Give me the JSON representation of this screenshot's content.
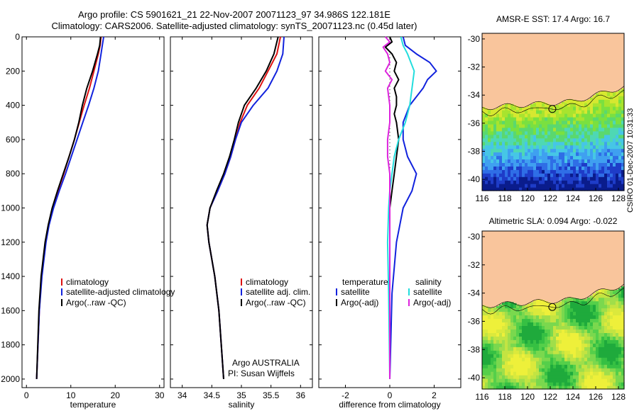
{
  "header": {
    "line1": "Argo profile: CS 5901621_21 22-Nov-2007 20071123_97 34.986S 122.181E",
    "line2": "Climatology: CARS2006. Satellite-adjusted climatology: synTS_20071123.nc (0.45d later)"
  },
  "credit": "CSIRO 01-Dec-2007 10:31:33",
  "colors": {
    "red": "#dd1111",
    "blue": "#1122dd",
    "black": "#000000",
    "cyan": "#22dddd",
    "magenta": "#dd22dd",
    "land": "#f9c59c"
  },
  "chart_data": [
    {
      "type": "line",
      "xlabel": "temperature",
      "xlim": [
        -1,
        31
      ],
      "xticks": [
        0,
        10,
        20,
        30
      ],
      "ylim": [
        2050,
        0
      ],
      "yticks": [
        0,
        200,
        400,
        600,
        800,
        1000,
        1200,
        1400,
        1600,
        1800,
        2000
      ],
      "legend": [
        "climatology",
        "satellite-adjusted climatology",
        "Argo(..raw -QC)"
      ],
      "series": [
        {
          "name": "climatology",
          "color": "red",
          "y": [
            0,
            50,
            100,
            200,
            300,
            400,
            500,
            600,
            700,
            800,
            900,
            1000,
            1100,
            1200,
            1400,
            1600,
            2000
          ],
          "x": [
            16.8,
            16.6,
            16.2,
            15.2,
            14.2,
            13.0,
            11.9,
            10.8,
            9.6,
            8.4,
            7.1,
            5.9,
            5.0,
            4.3,
            3.4,
            2.9,
            2.3
          ]
        },
        {
          "name": "satellite-adjusted climatology",
          "color": "blue",
          "y": [
            0,
            50,
            100,
            200,
            300,
            400,
            500,
            600,
            700,
            800,
            900,
            1000,
            1100,
            1200,
            1400,
            1600,
            2000
          ],
          "x": [
            17.4,
            17.1,
            16.8,
            16.2,
            15.2,
            14.0,
            12.7,
            11.4,
            10.1,
            8.8,
            7.4,
            6.1,
            5.1,
            4.4,
            3.5,
            2.9,
            2.3
          ]
        },
        {
          "name": "Argo(..raw -QC)",
          "color": "black",
          "y": [
            0,
            50,
            100,
            200,
            300,
            400,
            500,
            600,
            700,
            800,
            900,
            1000,
            1100,
            1200,
            1400,
            1600,
            2000
          ],
          "x": [
            16.7,
            16.5,
            16.0,
            14.9,
            13.6,
            12.6,
            11.8,
            10.8,
            9.6,
            8.3,
            7.0,
            5.8,
            4.9,
            4.2,
            3.3,
            2.8,
            2.3
          ]
        }
      ]
    },
    {
      "type": "line",
      "xlabel": "salinity",
      "xlim": [
        33.8,
        36.2
      ],
      "xticks": [
        34,
        34.5,
        35,
        35.5,
        36
      ],
      "ylim": [
        2050,
        0
      ],
      "yticks": [
        0,
        200,
        400,
        600,
        800,
        1000,
        1200,
        1400,
        1600,
        1800,
        2000
      ],
      "legend": [
        "climatology",
        "satellite adj. clim.",
        "Argo(..raw -QC)"
      ],
      "annotation": [
        "Argo AUSTRALIA",
        "PI: Susan Wijffels"
      ],
      "series": [
        {
          "name": "climatology",
          "color": "red",
          "y": [
            0,
            100,
            200,
            300,
            400,
            500,
            600,
            700,
            800,
            900,
            1000,
            1100,
            1200,
            1400,
            1600,
            2000
          ],
          "x": [
            35.66,
            35.6,
            35.45,
            35.3,
            35.1,
            34.98,
            34.9,
            34.82,
            34.72,
            34.6,
            34.47,
            34.42,
            34.45,
            34.55,
            34.62,
            34.7
          ]
        },
        {
          "name": "satellite adj. clim.",
          "color": "blue",
          "y": [
            0,
            100,
            200,
            300,
            400,
            500,
            600,
            700,
            800,
            900,
            1000,
            1100,
            1200,
            1400,
            1600,
            2000
          ],
          "x": [
            35.72,
            35.7,
            35.6,
            35.45,
            35.2,
            35.0,
            34.9,
            34.82,
            34.72,
            34.6,
            34.47,
            34.42,
            34.45,
            34.55,
            34.62,
            34.7
          ]
        },
        {
          "name": "Argo(..raw -QC)",
          "color": "black",
          "y": [
            0,
            100,
            200,
            300,
            400,
            500,
            600,
            700,
            800,
            900,
            1000,
            1100,
            1200,
            1400,
            1600,
            2000
          ],
          "x": [
            35.62,
            35.55,
            35.42,
            35.25,
            35.05,
            34.95,
            34.88,
            34.8,
            34.7,
            34.58,
            34.47,
            34.42,
            34.45,
            34.55,
            34.62,
            34.7
          ]
        }
      ]
    },
    {
      "type": "line",
      "xlabel": "difference from climatology",
      "xlim": [
        -3.2,
        3.2
      ],
      "xticks": [
        -2,
        0,
        2
      ],
      "ylim": [
        2050,
        0
      ],
      "yticks": [
        0,
        200,
        400,
        600,
        800,
        1000,
        1200,
        1400,
        1600,
        1800,
        2000
      ],
      "legend_columns": [
        "temperature",
        "salinity"
      ],
      "legend": [
        "satellite",
        "Argo(-adj)",
        "satellite",
        "Argo(-adj)"
      ],
      "series": [
        {
          "name": "satellite",
          "color": "blue",
          "y": [
            0,
            50,
            100,
            150,
            200,
            250,
            300,
            400,
            500,
            600,
            700,
            800,
            900,
            1000,
            1200,
            1500,
            2000
          ],
          "x": [
            0.6,
            0.7,
            1.2,
            1.8,
            2.1,
            1.7,
            1.5,
            0.9,
            0.6,
            0.6,
            0.8,
            1.2,
            1.0,
            0.6,
            0.3,
            0.1,
            0.0
          ]
        },
        {
          "name": "Argo(-adj)",
          "color": "black",
          "y": [
            0,
            30,
            60,
            100,
            150,
            200,
            250,
            300,
            350,
            400,
            450,
            500,
            600,
            700,
            800,
            900,
            1000,
            1200,
            1500,
            2000
          ],
          "x": [
            0.0,
            0.1,
            -0.2,
            0.1,
            0.3,
            0.2,
            0.4,
            0.2,
            0.3,
            0.3,
            0.2,
            0.3,
            0.4,
            0.3,
            0.2,
            0.1,
            0.0,
            0.0,
            0.0,
            0.0
          ]
        },
        {
          "name": "satellite",
          "color": "cyan",
          "y": [
            0,
            50,
            100,
            200,
            300,
            400,
            500,
            600,
            700,
            800,
            900,
            1000,
            1200,
            1500,
            2000
          ],
          "x": [
            0.5,
            0.6,
            0.8,
            1.1,
            1.0,
            0.9,
            0.7,
            0.4,
            0.2,
            0.1,
            0.0,
            -0.05,
            -0.1,
            -0.05,
            0.0
          ]
        },
        {
          "name": "Argo(-adj)",
          "color": "magenta",
          "y": [
            0,
            30,
            60,
            100,
            150,
            200,
            250,
            300,
            400,
            500,
            600,
            700,
            800,
            900,
            1000,
            1200,
            1500,
            2000
          ],
          "x": [
            -0.2,
            0.0,
            -0.3,
            -0.1,
            0.0,
            -0.2,
            0.1,
            -0.1,
            0.0,
            0.0,
            -0.1,
            -0.1,
            0.0,
            0.0,
            0.0,
            0.0,
            0.0,
            0.0
          ]
        }
      ]
    },
    {
      "type": "heatmap",
      "title": "AMSR-E SST: 17.4 Argo: 16.7",
      "xlim": [
        116,
        128.5
      ],
      "ylim": [
        -40.8,
        -29.6
      ],
      "xticks": [
        116,
        118,
        120,
        122,
        124,
        126,
        128
      ],
      "yticks": [
        -30,
        -32,
        -34,
        -36,
        -38,
        -40
      ],
      "float": {
        "lon": 122.181,
        "lat": -34.986
      }
    },
    {
      "type": "heatmap",
      "title": "Altimetric SLA: 0.094 Argo: -0.022",
      "xlim": [
        116,
        128.5
      ],
      "ylim": [
        -40.8,
        -29.6
      ],
      "xticks": [
        116,
        118,
        120,
        122,
        124,
        126,
        128
      ],
      "yticks": [
        -30,
        -32,
        -34,
        -36,
        -38,
        -40
      ],
      "float": {
        "lon": 122.181,
        "lat": -34.986
      }
    }
  ]
}
